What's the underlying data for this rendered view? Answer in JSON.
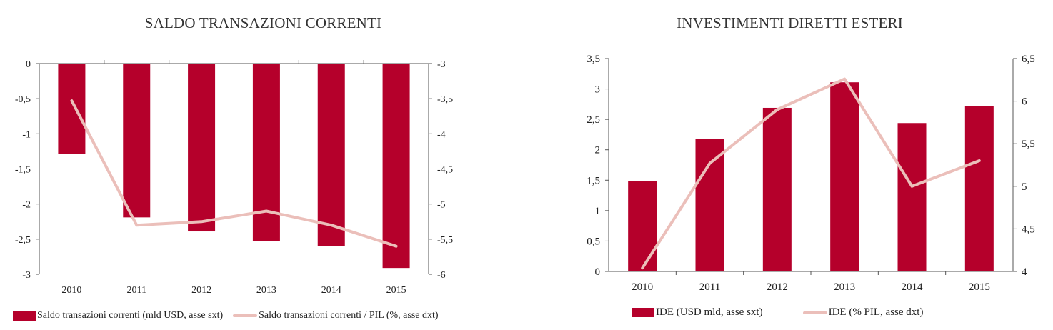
{
  "colors": {
    "bar": "#b5002b",
    "line": "#ebbfba",
    "axis": "#555555"
  },
  "chart_data": [
    {
      "type": "bar",
      "title": "SALDO TRANSAZIONI CORRENTI",
      "categories": [
        "2010",
        "2011",
        "2012",
        "2013",
        "2014",
        "2015"
      ],
      "series": [
        {
          "name": "Saldo transazioni correnti (mld USD, asse sxt)",
          "kind": "bar",
          "axis": "left",
          "values": [
            -1.29,
            -2.19,
            -2.39,
            -2.53,
            -2.6,
            -2.91
          ]
        },
        {
          "name": "Saldo transazioni correnti / PIL (%, asse dxt)",
          "kind": "line",
          "axis": "right",
          "values": [
            -3.53,
            -5.3,
            -5.25,
            -5.1,
            -5.3,
            -5.6
          ]
        }
      ],
      "y_left": {
        "min": -3,
        "max": 0,
        "ticks": [
          0,
          -0.5,
          -1,
          -1.5,
          -2,
          -2.5,
          -3
        ],
        "tick_labels": [
          "0",
          "-0,5",
          "-1",
          "-1,5",
          "-2",
          "-2,5",
          "-3"
        ]
      },
      "y_right": {
        "min": -6,
        "max": -3,
        "ticks": [
          -3,
          -3.5,
          -4,
          -4.5,
          -5,
          -5.5,
          -6
        ],
        "tick_labels": [
          "-3",
          "-3,5",
          "-4",
          "-4,5",
          "-5",
          "-5,5",
          "-6"
        ]
      },
      "bar_baseline": "top",
      "grid": false,
      "legend_position": "bottom"
    },
    {
      "type": "bar",
      "title": "INVESTIMENTI DIRETTI ESTERI",
      "categories": [
        "2010",
        "2011",
        "2012",
        "2013",
        "2014",
        "2015"
      ],
      "series": [
        {
          "name": "IDE (USD mld, asse sxt)",
          "kind": "bar",
          "axis": "left",
          "values": [
            1.48,
            2.18,
            2.69,
            3.11,
            2.44,
            2.72
          ]
        },
        {
          "name": "IDE (% PIL, asse dxt)",
          "kind": "line",
          "axis": "right",
          "values": [
            4.04,
            5.27,
            5.9,
            6.26,
            5.0,
            5.3
          ]
        }
      ],
      "y_left": {
        "min": 0,
        "max": 3.5,
        "ticks": [
          0,
          0.5,
          1,
          1.5,
          2,
          2.5,
          3,
          3.5
        ],
        "tick_labels": [
          "0",
          "0,5",
          "1",
          "1,5",
          "2",
          "2,5",
          "3",
          "3,5"
        ]
      },
      "y_right": {
        "min": 4,
        "max": 6.5,
        "ticks": [
          4,
          4.5,
          5,
          5.5,
          6,
          6.5
        ],
        "tick_labels": [
          "4",
          "4,5",
          "5",
          "5,5",
          "6",
          "6,5"
        ]
      },
      "bar_baseline": "bottom",
      "grid": false,
      "legend_position": "bottom"
    }
  ]
}
